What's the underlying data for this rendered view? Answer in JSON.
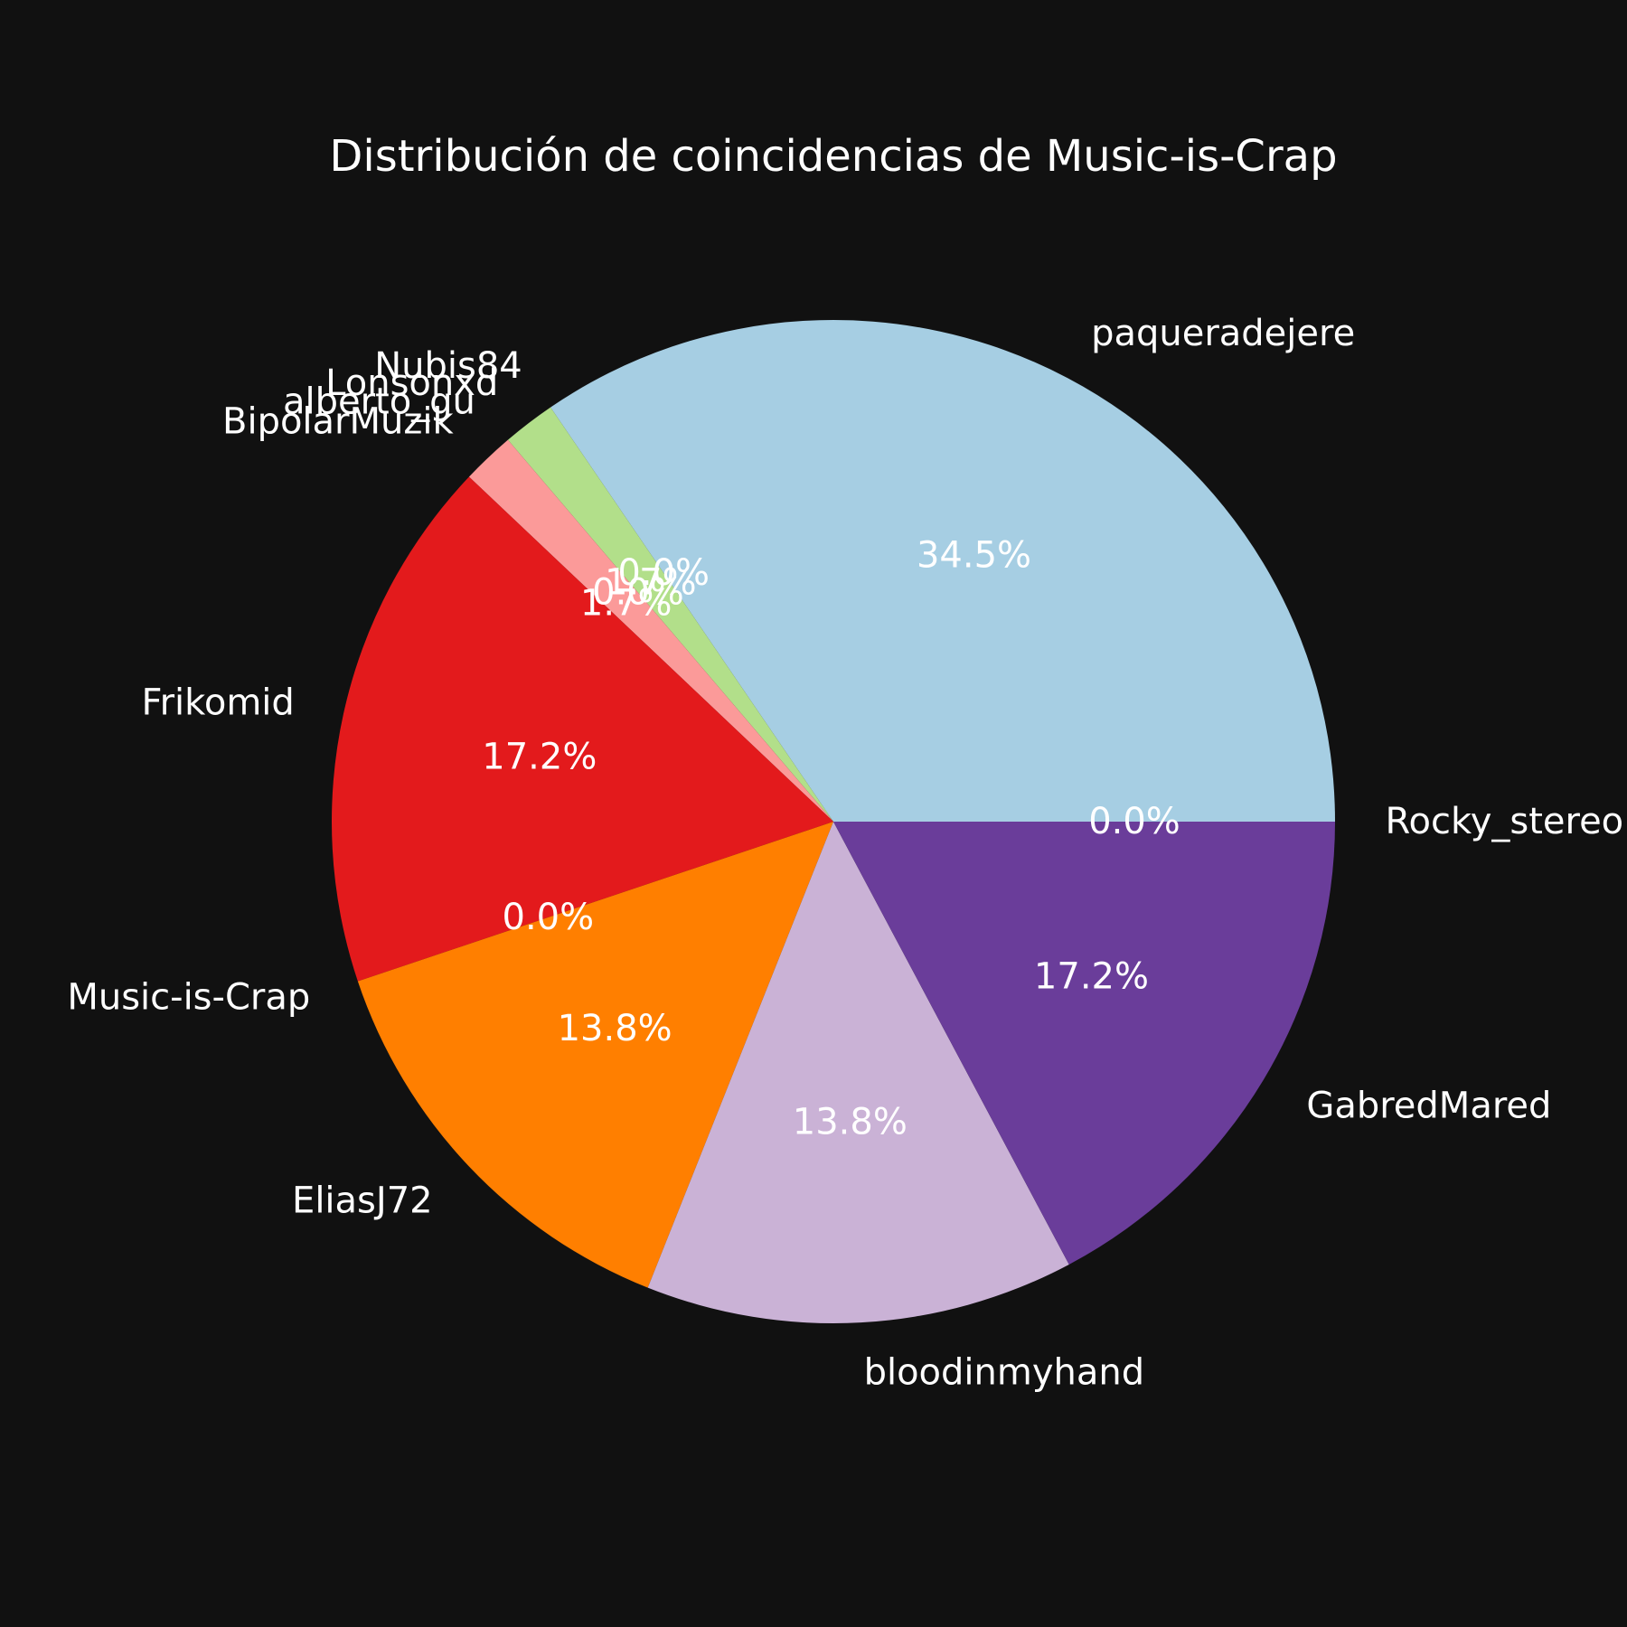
{
  "chart_data": {
    "type": "pie",
    "title": "Distribución de coincidencias de Music-is-Crap",
    "slices": [
      {
        "label": "Rocky_stereo",
        "value": 0.0,
        "pct_label": "0.0%",
        "color": "#6a3d9a"
      },
      {
        "label": "paqueradejere",
        "value": 34.5,
        "pct_label": "34.5%",
        "color": "#a6cee3"
      },
      {
        "label": "Nubis84",
        "value": 0.0,
        "pct_label": "0.0%",
        "color": "#1f78b4"
      },
      {
        "label": "Lonsonxd",
        "value": 1.7,
        "pct_label": "1.7%",
        "color": "#b2df8a"
      },
      {
        "label": "alberto_gu",
        "value": 0.0,
        "pct_label": "0.0%",
        "color": "#33a02c"
      },
      {
        "label": "BipolarMuzik",
        "value": 1.7,
        "pct_label": "1.7%",
        "color": "#fb9a99"
      },
      {
        "label": "Frikomid",
        "value": 17.2,
        "pct_label": "17.2%",
        "color": "#e31a1c"
      },
      {
        "label": "Music-is-Crap",
        "value": 0.0,
        "pct_label": "0.0%",
        "color": "#fdbf6f"
      },
      {
        "label": "EliasJ72",
        "value": 13.8,
        "pct_label": "13.8%",
        "color": "#ff7f00"
      },
      {
        "label": "bloodinmyhand",
        "value": 13.8,
        "pct_label": "13.8%",
        "color": "#cab2d6"
      },
      {
        "label": "GabredMared",
        "value": 17.2,
        "pct_label": "17.2%",
        "color": "#6a3d9a"
      }
    ],
    "start_angle_deg": 0,
    "direction": "counterclockwise"
  }
}
